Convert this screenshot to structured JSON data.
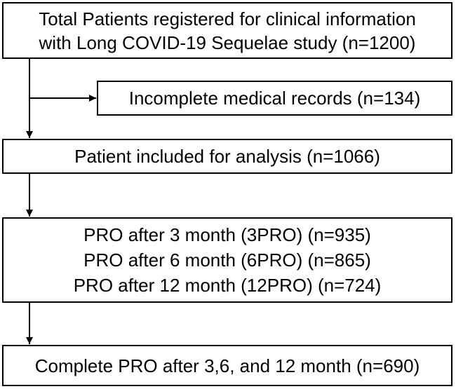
{
  "flowchart": {
    "total": {
      "line1": "Total Patients registered for clinical information",
      "line2": "with Long COVID-19 Sequelae study (n=1200)"
    },
    "excluded": {
      "label": "Incomplete medical records (n=134)"
    },
    "included": {
      "label": "Patient included for analysis (n=1066)"
    },
    "pro": {
      "lines": [
        "PRO after 3 month (3PRO) (n=935)",
        "PRO after 6 month (6PRO) (n=865)",
        "PRO after 12 month (12PRO) (n=724)"
      ]
    },
    "complete": {
      "label": "Complete PRO after 3,6, and 12 month (n=690)"
    }
  }
}
